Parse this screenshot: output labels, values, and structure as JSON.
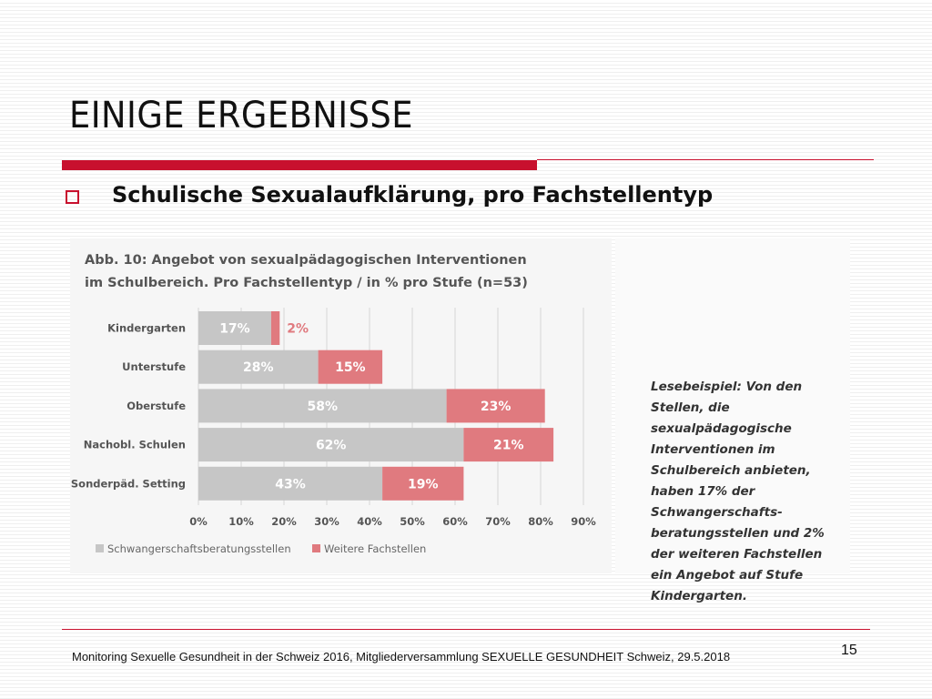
{
  "slide": {
    "title": "EINIGE ERGEBNISSE",
    "subtitle": "Schulische Sexualaufklärung, pro Fachstellentyp",
    "note": "Lesebeispiel: Von den Stellen, die sexualpädagogische Interventionen im Schulbereich anbieten, haben 17% der Schwangerschafts-beratungsstellen und 2% der weiteren Fachstellen ein Angebot auf Stufe Kindergarten.",
    "footer": "Monitoring Sexuelle Gesundheit in der Schweiz 2016, Mitgliederversammlung SEXUELLE GESUNDHEIT Schweiz, 29.5.2018",
    "page_number": "15",
    "accent_color": "#c8102e"
  },
  "chart_data": {
    "type": "bar",
    "orientation": "horizontal",
    "stacked": true,
    "title_lines": [
      "Abb. 10: Angebot von sexualpädagogischen Interventionen",
      "im Schulbereich. Pro Fachstellentyp / in % pro Stufe (n=53)"
    ],
    "categories": [
      "Kindergarten",
      "Unterstufe",
      "Oberstufe",
      "Nachobl. Schulen",
      "Sonderpäd. Setting"
    ],
    "series": [
      {
        "name": "Schwangerschaftsberatungsstellen",
        "color": "#c6c6c6",
        "values": [
          17,
          28,
          58,
          62,
          43
        ]
      },
      {
        "name": "Weitere Fachstellen",
        "color": "#e07a7f",
        "values": [
          2,
          15,
          23,
          21,
          19
        ]
      }
    ],
    "value_labels": [
      [
        "17%",
        "28%",
        "58%",
        "62%",
        "43%"
      ],
      [
        "2%",
        "15%",
        "23%",
        "21%",
        "19%"
      ]
    ],
    "xlim": [
      0,
      90
    ],
    "xticks": [
      "0%",
      "10%",
      "20%",
      "30%",
      "40%",
      "50%",
      "60%",
      "70%",
      "80%",
      "90%"
    ],
    "grid": true,
    "legend_position": "bottom-left"
  }
}
